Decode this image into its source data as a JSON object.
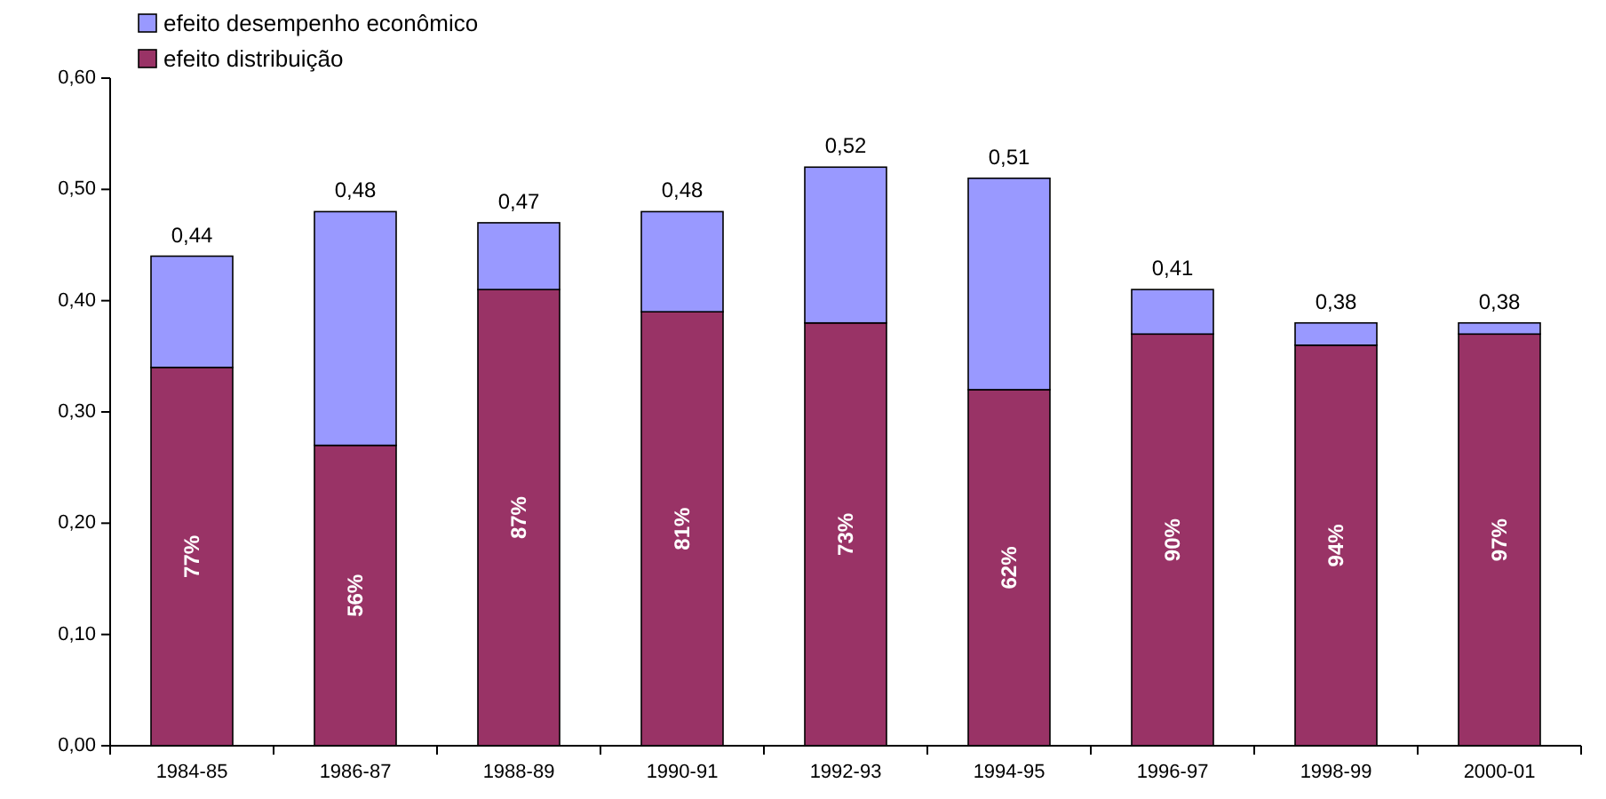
{
  "chart_data": {
    "type": "bar",
    "stacked": true,
    "categories": [
      "1984-85",
      "1986-87",
      "1988-89",
      "1990-91",
      "1992-93",
      "1994-95",
      "1996-97",
      "1998-99",
      "2000-01"
    ],
    "series": [
      {
        "name": "efeito distribuição",
        "color": "#993366",
        "values": [
          0.34,
          0.27,
          0.41,
          0.39,
          0.38,
          0.32,
          0.37,
          0.36,
          0.37
        ]
      },
      {
        "name": "efeito desempenho econômico",
        "color": "#9999ff",
        "values": [
          0.1,
          0.21,
          0.06,
          0.09,
          0.14,
          0.19,
          0.04,
          0.02,
          0.01
        ]
      }
    ],
    "totals": [
      "0,44",
      "0,48",
      "0,47",
      "0,48",
      "0,52",
      "0,51",
      "0,41",
      "0,38",
      "0,38"
    ],
    "ylim": [
      0,
      0.6
    ],
    "yticks": [
      {
        "value": 0,
        "label": "0,00"
      },
      {
        "value": 0.1,
        "label": "0,10"
      },
      {
        "value": 0.2,
        "label": "0,20"
      },
      {
        "value": 0.3,
        "label": "0,30"
      },
      {
        "value": 0.4,
        "label": "0,40"
      },
      {
        "value": 0.5,
        "label": "0,50"
      },
      {
        "value": 0.6,
        "label": "0,60"
      }
    ],
    "annotations": [
      "77%",
      "56%",
      "87%",
      "81%",
      "73%",
      "62%",
      "90%",
      "94%",
      "97%"
    ],
    "grid": false,
    "legend": "top left"
  }
}
